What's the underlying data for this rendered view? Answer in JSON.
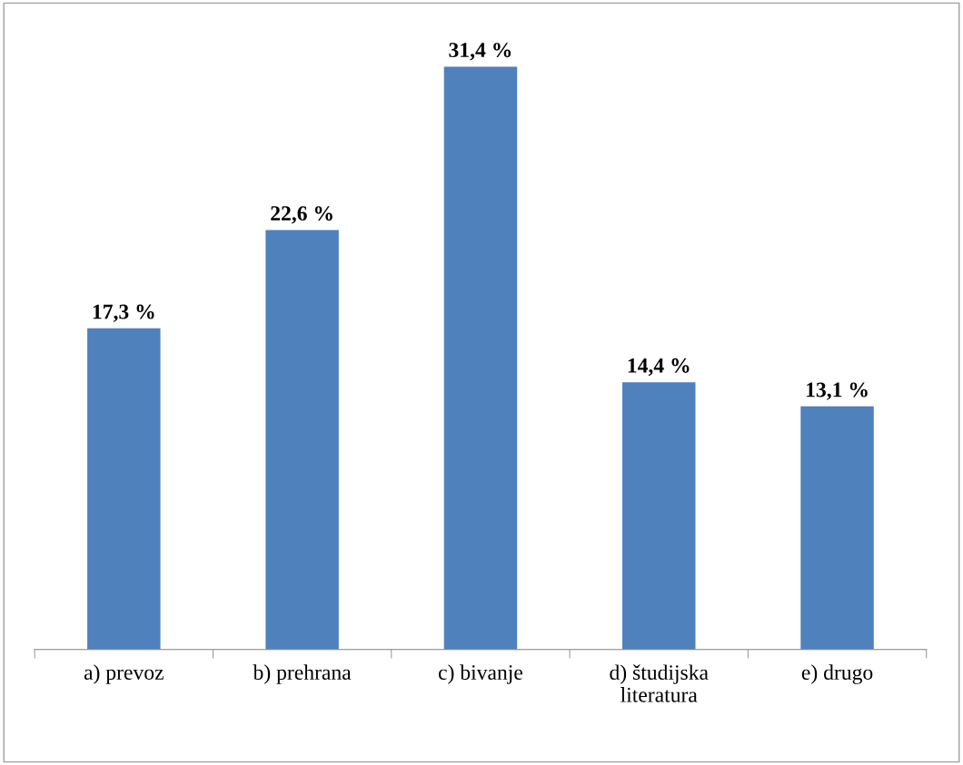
{
  "chart_data": {
    "type": "bar",
    "categories": [
      "a) prevoz",
      "b) prehrana",
      "c) bivanje",
      "d) študijska\nliteratura",
      "e) drugo"
    ],
    "values": [
      17.3,
      22.6,
      31.4,
      14.4,
      13.1
    ],
    "value_labels": [
      "17,3 %",
      "22,6 %",
      "31,4 %",
      "14,4 %",
      "13,1 %"
    ],
    "color": "#4f81bd",
    "grid": false,
    "legend": false
  }
}
